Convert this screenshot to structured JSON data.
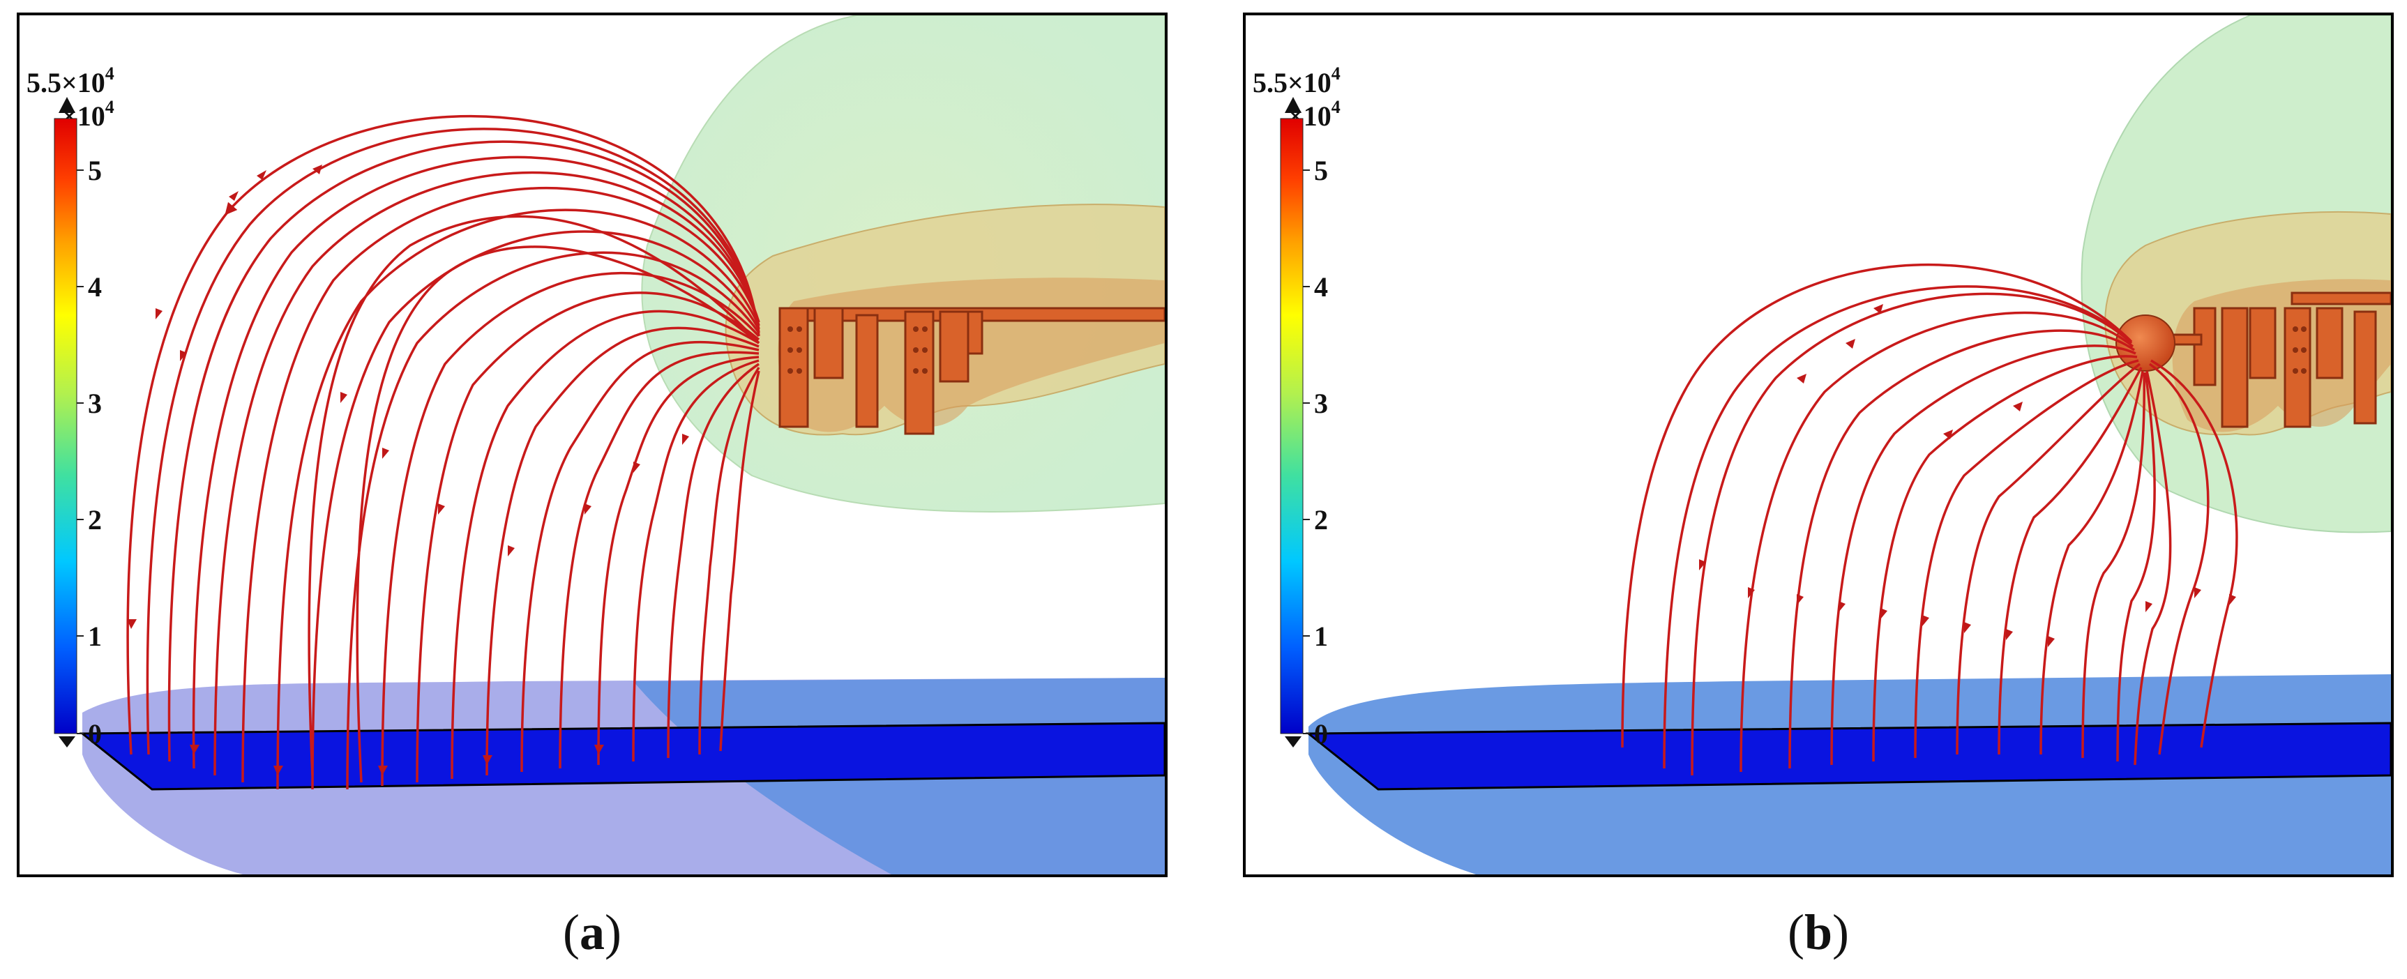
{
  "panels": [
    {
      "id": "a",
      "caption_open": "(",
      "caption_letter": "a",
      "caption_close": ")",
      "colorbar": {
        "max_label": "5.5×10",
        "max_exp": "4",
        "unit_label": "×10",
        "unit_exp": "4",
        "ticks": [
          "5",
          "4",
          "3",
          "2",
          "1",
          "0"
        ]
      }
    },
    {
      "id": "b",
      "caption_open": "(",
      "caption_letter": "b",
      "caption_close": ")",
      "colorbar": {
        "max_label": "5.5×10",
        "max_exp": "4",
        "unit_label": "×10",
        "unit_exp": "4",
        "ticks": [
          "5",
          "4",
          "3",
          "2",
          "1",
          "0"
        ]
      }
    }
  ],
  "colors": {
    "streamline": "#d21e1e",
    "ground_plate": "#0a14e0",
    "ground_field": "#5a8fe0",
    "conductor": "#d9622a",
    "outer_field": "#c9ecc6",
    "inner_field": "#e3c98a"
  },
  "colormap": [
    "#0000c8",
    "#0060ff",
    "#00c8ff",
    "#40e0a0",
    "#b0f050",
    "#ffff00",
    "#ffa000",
    "#ff4000",
    "#e00000"
  ]
}
